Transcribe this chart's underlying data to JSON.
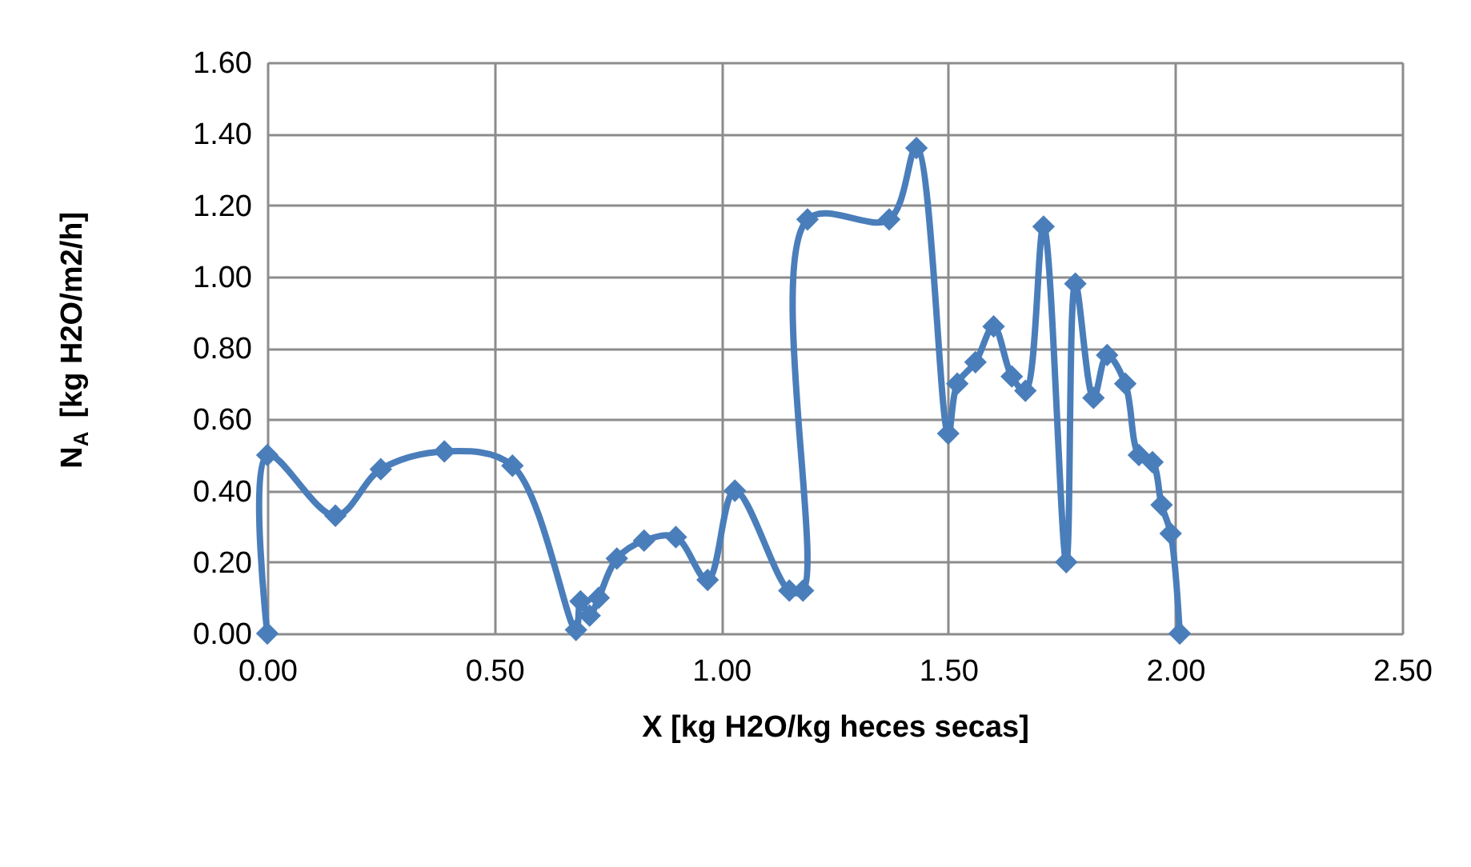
{
  "chart_data": {
    "type": "line",
    "xlabel": "X  [kg H2O/kg heces secas]",
    "ylabel": "N$_{A}$ [kg H2O/m2/h]",
    "x": [
      0.0,
      0.0,
      0.15,
      0.25,
      0.39,
      0.54,
      0.68,
      0.69,
      0.71,
      0.73,
      0.77,
      0.83,
      0.9,
      0.97,
      1.03,
      1.15,
      1.18,
      1.19,
      1.37,
      1.43,
      1.5,
      1.52,
      1.56,
      1.6,
      1.64,
      1.67,
      1.71,
      1.76,
      1.78,
      1.82,
      1.85,
      1.89,
      1.92,
      1.95,
      1.97,
      1.99,
      2.01
    ],
    "series": [
      {
        "color": "#4a7ebb",
        "values": [
          0.0,
          0.5,
          0.33,
          0.46,
          0.51,
          0.47,
          0.01,
          0.09,
          0.05,
          0.1,
          0.21,
          0.26,
          0.27,
          0.15,
          0.4,
          0.12,
          0.12,
          1.16,
          1.16,
          1.36,
          0.56,
          0.7,
          0.76,
          0.86,
          0.72,
          0.68,
          1.14,
          0.2,
          0.98,
          0.66,
          0.78,
          0.7,
          0.5,
          0.48,
          0.36,
          0.28,
          0.0
        ]
      }
    ],
    "xlim": [
      0,
      2.5
    ],
    "ylim": [
      0,
      1.6
    ],
    "xticks": [
      {
        "value": 0,
        "label": "0.00"
      },
      {
        "value": 0.5,
        "label": "0.50"
      },
      {
        "value": 1,
        "label": "1.00"
      },
      {
        "value": 1.5,
        "label": "1.50"
      },
      {
        "value": 2,
        "label": "2.00"
      },
      {
        "value": 2.5,
        "label": "2.50"
      }
    ],
    "yticks": [
      {
        "value": 0,
        "label": "0.00"
      },
      {
        "value": 0.2,
        "label": "0.20"
      },
      {
        "value": 0.4,
        "label": "0.40"
      },
      {
        "value": 0.6,
        "label": "0.60"
      },
      {
        "value": 0.8,
        "label": "0.80"
      },
      {
        "value": 1.0,
        "label": "1.00"
      },
      {
        "value": 1.2,
        "label": "1.20"
      },
      {
        "value": 1.4,
        "label": "1.40"
      },
      {
        "value": 1.6,
        "label": "1.60"
      }
    ],
    "grid": true,
    "marker": "diamond",
    "line_style": "solid"
  }
}
